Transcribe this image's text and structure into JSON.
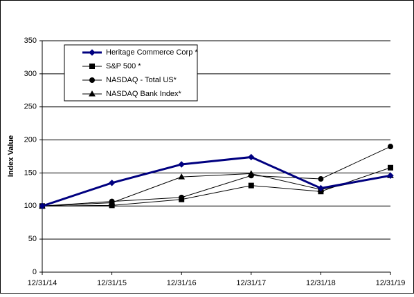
{
  "chart_data": {
    "type": "line",
    "y_label": "Index Value",
    "categories": [
      "12/31/14",
      "12/31/15",
      "12/31/16",
      "12/31/17",
      "12/31/18",
      "12/31/19"
    ],
    "series": [
      {
        "name": "Heritage Commerce Corp *",
        "color": "#000080",
        "marker": "diamond",
        "line_width": 3,
        "values": [
          100,
          135,
          163,
          174,
          127,
          146
        ]
      },
      {
        "name": "S&P 500 *",
        "color": "#000000",
        "marker": "square",
        "line_width": 1,
        "values": [
          100,
          101,
          110,
          131,
          122,
          158
        ]
      },
      {
        "name": "NASDAQ - Total US*",
        "color": "#000000",
        "marker": "circle",
        "line_width": 1,
        "values": [
          100,
          107,
          113,
          146,
          141,
          190
        ]
      },
      {
        "name": "NASDAQ Bank Index*",
        "color": "#000000",
        "marker": "triangle",
        "line_width": 1,
        "values": [
          100,
          105,
          144,
          149,
          125,
          146
        ]
      }
    ],
    "ylim": [
      0,
      350
    ],
    "yticks": [
      0,
      50,
      100,
      150,
      200,
      250,
      300,
      350
    ],
    "grid": true,
    "legend": "top-left"
  }
}
